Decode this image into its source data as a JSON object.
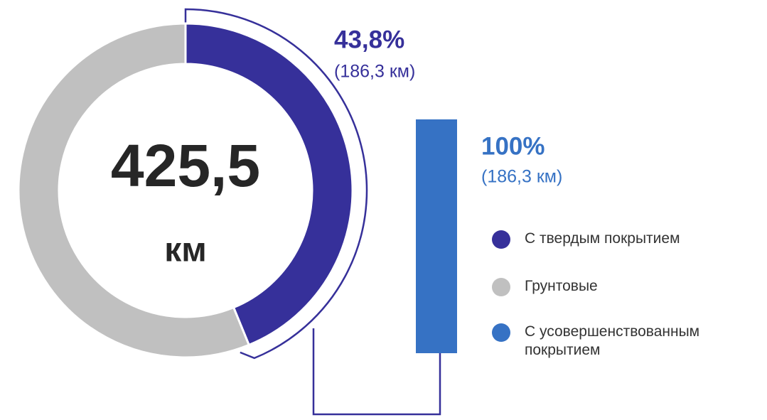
{
  "chart_data": [
    {
      "type": "pie",
      "center_value": "425,5",
      "center_unit": "км",
      "categories": [
        "С твердым покрытием",
        "Грунтовые"
      ],
      "values": [
        43.8,
        56.2
      ],
      "value_labels": [
        "43,8%",
        null
      ],
      "details": [
        "(186,3 км)",
        null
      ],
      "colors": [
        "#36309a",
        "#c0c0c0"
      ]
    },
    {
      "type": "bar",
      "categories": [
        "С усовершенствованным покрытием"
      ],
      "values": [
        100
      ],
      "value_labels": [
        "100%"
      ],
      "details": [
        "(186,3 км)"
      ],
      "color": "#3672c4",
      "ylim": [
        0,
        100
      ]
    }
  ]
}
